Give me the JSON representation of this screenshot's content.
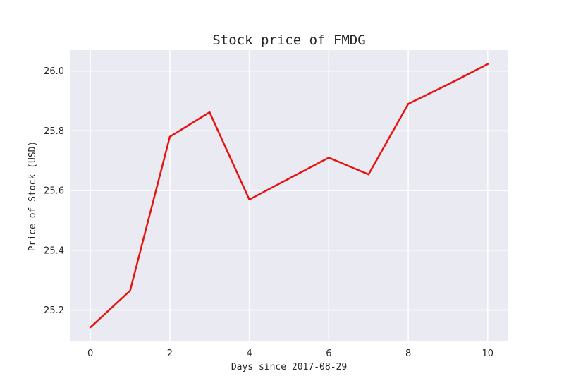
{
  "chart_data": {
    "type": "line",
    "title": "Stock price of FMDG",
    "xlabel": "Days since 2017-08-29",
    "ylabel": "Price of Stock (USD)",
    "x": [
      0,
      1,
      2,
      3,
      4,
      5,
      6,
      7,
      8,
      9,
      10
    ],
    "series": [
      {
        "values": [
          25.142,
          25.265,
          25.78,
          25.862,
          25.57,
          25.64,
          25.71,
          25.654,
          25.89,
          25.955,
          26.023
        ],
        "color": "#e6130f"
      }
    ],
    "xlim": [
      -0.5,
      10.5
    ],
    "ylim": [
      25.095,
      26.07
    ],
    "xticks": [
      0,
      2,
      4,
      6,
      8,
      10
    ],
    "yticks": [
      25.2,
      25.4,
      25.6,
      25.8,
      26.0
    ],
    "xtick_labels": [
      "0",
      "2",
      "4",
      "6",
      "8",
      "10"
    ],
    "ytick_labels": [
      "25.2",
      "25.4",
      "25.6",
      "25.8",
      "26.0"
    ],
    "grid": true,
    "legend": "none",
    "colors": {
      "plot_background": "#eaeaf2",
      "grid": "#ffffff",
      "text": "#262626"
    }
  }
}
